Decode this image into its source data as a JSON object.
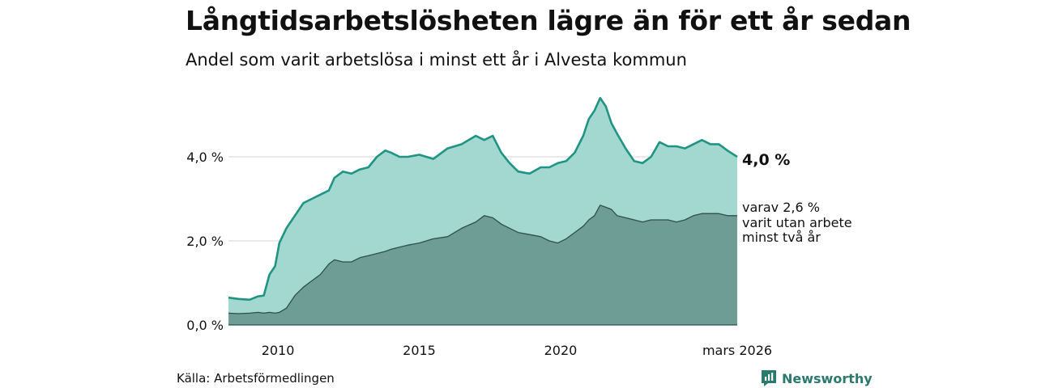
{
  "header": {
    "title": "Långtidsarbetslösheten lägre än för ett år sedan",
    "subtitle": "Andel som varit arbetslösa i minst ett år i Alvesta kommun"
  },
  "footer": {
    "source": "Källa: Arbetsförmedlingen",
    "brand": "Newsworthy"
  },
  "colors": {
    "total_fill": "#a3d8d1",
    "total_line": "#1f9484",
    "long_fill": "#6e9d95",
    "long_line": "#2f4f4a",
    "grid": "#dddddd"
  },
  "chart_data": {
    "type": "area",
    "title": "Långtidsarbetslösheten lägre än för ett år sedan",
    "subtitle": "Andel som varit arbetslösa i minst ett år i Alvesta kommun",
    "xlabel": "",
    "ylabel": "",
    "x_range": [
      2008.25,
      2026.25
    ],
    "ylim": [
      0,
      6
    ],
    "y_ticks": [
      0,
      2,
      4
    ],
    "y_tick_labels": [
      "0,0 %",
      "2,0 %",
      "4,0 %"
    ],
    "x_ticks": [
      2010,
      2015,
      2020,
      2026.25
    ],
    "x_tick_labels": [
      "2010",
      "2015",
      "2020",
      "mars 2026"
    ],
    "grid": true,
    "series": [
      {
        "name": "Minst ett år",
        "x": [
          2008.25,
          2008.6,
          2009.0,
          2009.3,
          2009.5,
          2009.7,
          2009.9,
          2010.05,
          2010.3,
          2010.6,
          2010.9,
          2011.2,
          2011.5,
          2011.8,
          2012.0,
          2012.3,
          2012.6,
          2012.9,
          2013.2,
          2013.5,
          2013.8,
          2014.0,
          2014.3,
          2014.6,
          2015.0,
          2015.5,
          2016.0,
          2016.5,
          2017.0,
          2017.3,
          2017.6,
          2017.9,
          2018.2,
          2018.5,
          2018.9,
          2019.3,
          2019.6,
          2019.9,
          2020.2,
          2020.5,
          2020.8,
          2021.0,
          2021.2,
          2021.4,
          2021.6,
          2021.8,
          2022.0,
          2022.3,
          2022.6,
          2022.9,
          2023.2,
          2023.5,
          2023.8,
          2024.1,
          2024.4,
          2024.7,
          2025.0,
          2025.3,
          2025.6,
          2025.9,
          2026.25
        ],
        "values": [
          0.65,
          0.62,
          0.6,
          0.68,
          0.7,
          1.2,
          1.4,
          1.95,
          2.3,
          2.6,
          2.9,
          3.0,
          3.1,
          3.2,
          3.5,
          3.65,
          3.6,
          3.7,
          3.75,
          4.0,
          4.15,
          4.1,
          4.0,
          4.0,
          4.05,
          3.95,
          4.2,
          4.3,
          4.5,
          4.4,
          4.5,
          4.1,
          3.85,
          3.65,
          3.6,
          3.75,
          3.75,
          3.85,
          3.9,
          4.1,
          4.5,
          4.9,
          5.1,
          5.4,
          5.2,
          4.8,
          4.55,
          4.2,
          3.9,
          3.85,
          4.0,
          4.35,
          4.25,
          4.25,
          4.2,
          4.3,
          4.4,
          4.3,
          4.3,
          4.15,
          4.0
        ]
      },
      {
        "name": "Minst två år",
        "x": [
          2008.25,
          2008.6,
          2009.0,
          2009.3,
          2009.5,
          2009.7,
          2009.9,
          2010.05,
          2010.3,
          2010.6,
          2010.9,
          2011.2,
          2011.5,
          2011.8,
          2012.0,
          2012.3,
          2012.6,
          2012.9,
          2013.2,
          2013.5,
          2013.8,
          2014.0,
          2014.3,
          2014.6,
          2015.0,
          2015.5,
          2016.0,
          2016.5,
          2017.0,
          2017.3,
          2017.6,
          2017.9,
          2018.2,
          2018.5,
          2018.9,
          2019.3,
          2019.6,
          2019.9,
          2020.2,
          2020.5,
          2020.8,
          2021.0,
          2021.2,
          2021.4,
          2021.6,
          2021.8,
          2022.0,
          2022.3,
          2022.6,
          2022.9,
          2023.2,
          2023.5,
          2023.8,
          2024.1,
          2024.4,
          2024.7,
          2025.0,
          2025.3,
          2025.6,
          2025.9,
          2026.25
        ],
        "values": [
          0.28,
          0.27,
          0.28,
          0.3,
          0.28,
          0.3,
          0.28,
          0.3,
          0.4,
          0.7,
          0.9,
          1.05,
          1.2,
          1.45,
          1.55,
          1.5,
          1.5,
          1.6,
          1.65,
          1.7,
          1.75,
          1.8,
          1.85,
          1.9,
          1.95,
          2.05,
          2.1,
          2.3,
          2.45,
          2.6,
          2.55,
          2.4,
          2.3,
          2.2,
          2.15,
          2.1,
          2.0,
          1.95,
          2.05,
          2.2,
          2.35,
          2.5,
          2.6,
          2.85,
          2.8,
          2.75,
          2.6,
          2.55,
          2.5,
          2.45,
          2.5,
          2.5,
          2.5,
          2.45,
          2.5,
          2.6,
          2.65,
          2.65,
          2.65,
          2.6,
          2.6
        ]
      }
    ],
    "end_labels": {
      "total": "4,0 %",
      "long_line1": "varav 2,6 %",
      "long_line2": "varit utan arbete",
      "long_line3": "minst två år"
    }
  }
}
